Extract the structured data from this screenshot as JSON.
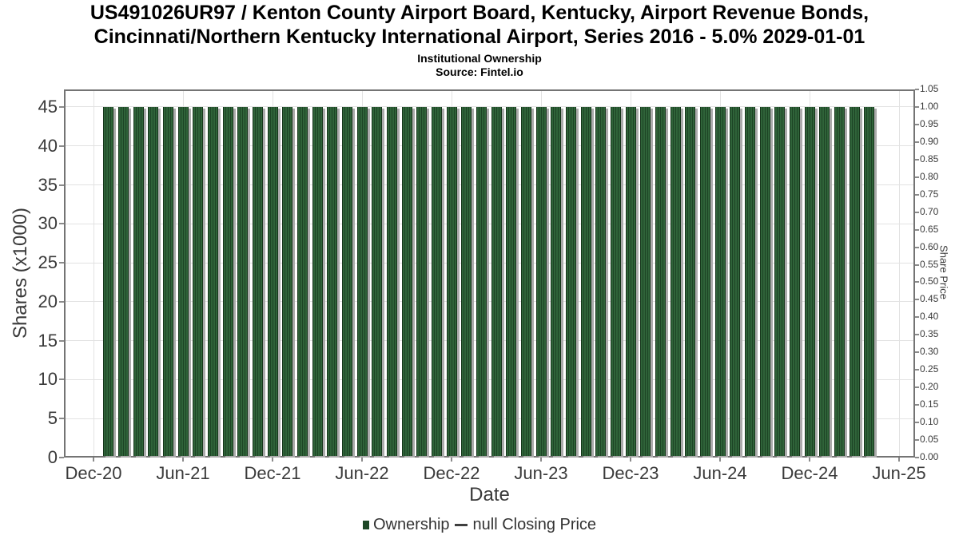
{
  "chart_data": {
    "type": "bar",
    "title": "US491026UR97 / Kenton County Airport Board, Kentucky, Airport Revenue Bonds, Cincinnati/Northern Kentucky International Airport, Series 2016 - 5.0% 2029-01-01",
    "title_lines": [
      "US491026UR97 / Kenton County Airport Board, Kentucky, Airport Revenue Bonds,",
      "Cincinnati/Northern Kentucky International Airport, Series 2016 - 5.0% 2029-01-01"
    ],
    "subtitle": "Institutional Ownership",
    "source": "Source: Fintel.io",
    "xlabel": "Date",
    "ylabel_left": "Shares (x1000)",
    "ylabel_right": "Share Price",
    "categories": [
      "Jan-21",
      "Feb-21",
      "Mar-21",
      "Apr-21",
      "May-21",
      "Jun-21",
      "Jul-21",
      "Aug-21",
      "Sep-21",
      "Oct-21",
      "Nov-21",
      "Dec-21",
      "Jan-22",
      "Feb-22",
      "Mar-22",
      "Apr-22",
      "May-22",
      "Jun-22",
      "Jul-22",
      "Aug-22",
      "Sep-22",
      "Oct-22",
      "Nov-22",
      "Dec-22",
      "Jan-23",
      "Feb-23",
      "Mar-23",
      "Apr-23",
      "May-23",
      "Jun-23",
      "Jul-23",
      "Aug-23",
      "Sep-23",
      "Oct-23",
      "Nov-23",
      "Dec-23",
      "Jan-24",
      "Feb-24",
      "Mar-24",
      "Apr-24",
      "May-24",
      "Jun-24",
      "Jul-24",
      "Aug-24",
      "Sep-24",
      "Oct-24",
      "Nov-24",
      "Dec-24",
      "Jan-25",
      "Feb-25",
      "Mar-25",
      "Apr-25"
    ],
    "series": [
      {
        "name": "Ownership",
        "type": "bar",
        "values": [
          45,
          45,
          45,
          45,
          45,
          45,
          45,
          45,
          45,
          45,
          45,
          45,
          45,
          45,
          45,
          45,
          45,
          45,
          45,
          45,
          45,
          45,
          45,
          45,
          45,
          45,
          45,
          45,
          45,
          45,
          45,
          45,
          45,
          45,
          45,
          45,
          45,
          45,
          45,
          45,
          45,
          45,
          45,
          45,
          45,
          45,
          45,
          45,
          45,
          45,
          45,
          45
        ]
      },
      {
        "name": "null Closing Price",
        "type": "line",
        "values": []
      }
    ],
    "x_tick_labels": [
      "Dec-20",
      "Jun-21",
      "Dec-21",
      "Jun-22",
      "Dec-22",
      "Jun-23",
      "Dec-23",
      "Jun-24",
      "Dec-24",
      "Jun-25"
    ],
    "y_left_ticks": [
      0,
      5,
      10,
      15,
      20,
      25,
      30,
      35,
      40,
      45
    ],
    "y_right_ticks": [
      "0.00",
      "0.05",
      "0.10",
      "0.15",
      "0.20",
      "0.25",
      "0.30",
      "0.35",
      "0.40",
      "0.45",
      "0.50",
      "0.55",
      "0.60",
      "0.65",
      "0.70",
      "0.75",
      "0.80",
      "0.85",
      "0.90",
      "0.95",
      "1.00",
      "1.05"
    ],
    "y_left_range": [
      0,
      47.25
    ],
    "y_right_range": [
      0,
      1.05
    ],
    "grid": true,
    "legend_position": "bottom",
    "colors": {
      "bar_fill_light": "#2f6339",
      "bar_fill_dark": "#1d4425",
      "bar_border": "#16361b",
      "bar_shadow": "#ababab",
      "legend_square": "#1d4726",
      "legend_dash": "#3f3f3f",
      "grid": "#e2e2e2",
      "spine": "#747474",
      "text": "#3a3a3a",
      "title": "#000000"
    }
  }
}
